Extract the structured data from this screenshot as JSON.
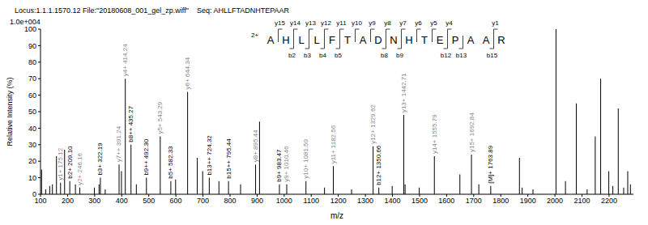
{
  "chart_data": {
    "type": "bar",
    "title": "Locus:1.1.1.1570.12 File:\"20180608_001_gel_zp.wiff\"    Seq: AHLLFTADNHTEPAAR",
    "scale_label": "1.0e+004",
    "x_label": "m/z",
    "y_label": "Relative Intensity (%)",
    "xlim": [
      100,
      2290
    ],
    "xticks": [
      100,
      200,
      300,
      400,
      500,
      600,
      700,
      800,
      900,
      1000,
      1100,
      1200,
      1300,
      1400,
      1500,
      1600,
      1700,
      1800,
      1900,
      2000,
      2100,
      2200
    ],
    "ylim": [
      0,
      100
    ],
    "yticks": [
      0,
      10,
      20,
      30,
      40,
      50,
      60,
      70,
      80,
      90,
      100
    ],
    "color": "#000000",
    "data_labels": true,
    "x": [
      105,
      120,
      135,
      145,
      160,
      175.12,
      190,
      209.1,
      230,
      246.16,
      300,
      317.2,
      322.19,
      340,
      391.24,
      400,
      414.24,
      435.27,
      455,
      492.3,
      543.29,
      582.33,
      600,
      644.34,
      680,
      700,
      724.32,
      760,
      795.44,
      840,
      895.44,
      910,
      983.47,
      1010.46,
      1081.5,
      1150,
      1182.56,
      1250,
      1329.62,
      1350.66,
      1400,
      1442.71,
      1447.69,
      1500,
      1555.79,
      1650,
      1692.84,
      1720,
      1763.89,
      1870,
      1880,
      1920,
      2005,
      2040,
      2080,
      2120,
      2150,
      2170,
      2200,
      2215,
      2235,
      2255,
      2270,
      2280
    ],
    "values": [
      15,
      3,
      5,
      6,
      23,
      7,
      27,
      8,
      6,
      4,
      4,
      6,
      10,
      3,
      18,
      14,
      70,
      30,
      6,
      10,
      35,
      8,
      9,
      62,
      22,
      14,
      10,
      8,
      8,
      6,
      18,
      44,
      6,
      6,
      8,
      4,
      17,
      3,
      29,
      4,
      5,
      48,
      6,
      4,
      23,
      12,
      24,
      6,
      5,
      22,
      4,
      3,
      100,
      8,
      55,
      3,
      35,
      70,
      14,
      5,
      52,
      4,
      14,
      6
    ],
    "peak_labels": [
      null,
      null,
      null,
      null,
      null,
      "y1+ 175.12",
      null,
      "b2+ 209.10",
      null,
      "y2+ 246.16",
      null,
      null,
      "b3+ 322.19",
      null,
      "y7++ 391.24",
      null,
      "y4+ 414.24",
      "b8++ 435.27",
      null,
      "b9++ 492.30",
      "y5+ 543.29",
      "b5+ 582.33",
      null,
      "y6+ 644.34",
      null,
      null,
      "b13++ 724.32",
      null,
      "b15++ 795.44",
      null,
      "y8+ 895.44",
      null,
      "b9+ 983.47",
      "y9+ 1010.46",
      "y10+ 1081.50",
      null,
      "y11+ 1182.56",
      null,
      "y12+ 1329.62",
      "b12+ 1350.66",
      null,
      "y13+ 1442.71",
      null,
      null,
      "y14+ 1555.79",
      null,
      "y15+ 1692.84",
      null,
      "[M]+ 1763.89",
      null,
      null,
      null,
      null,
      null,
      null,
      null,
      null,
      null,
      null,
      null,
      null,
      null,
      null,
      null
    ],
    "sequence": {
      "charge": "2+",
      "residues": "AHLLFTADNHTEPAAR",
      "y_ions": [
        15,
        14,
        13,
        12,
        11,
        10,
        9,
        8,
        7,
        6,
        5,
        4,
        1
      ],
      "b_ions": [
        2,
        3,
        4,
        5,
        8,
        9,
        12,
        13,
        15
      ]
    }
  }
}
